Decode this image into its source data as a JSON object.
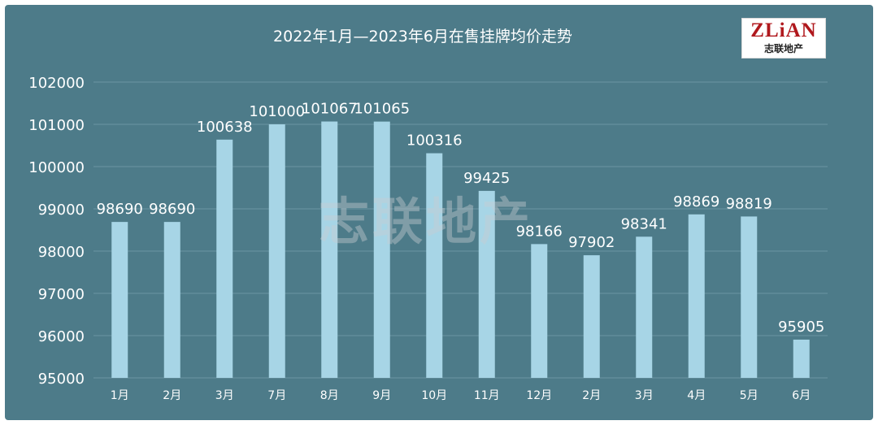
{
  "chart_data": {
    "type": "bar",
    "title": "2022年1月—2023年6月在售挂牌均价走势",
    "categories": [
      "1月",
      "2月",
      "3月",
      "7月",
      "8月",
      "9月",
      "10月",
      "11月",
      "12月",
      "2月",
      "3月",
      "4月",
      "5月",
      "6月"
    ],
    "values": [
      98690,
      98690,
      100638,
      101000,
      101067,
      101065,
      100316,
      99425,
      98166,
      97902,
      98341,
      98869,
      98819,
      95905
    ],
    "data_labels": [
      "98690",
      "98690",
      "100638",
      "101000",
      "101067",
      "101065",
      "100316",
      "99425",
      "98166",
      "97902",
      "98341",
      "98869",
      "98819",
      "95905"
    ],
    "ylim": [
      95000,
      102000
    ],
    "yticks": [
      95000,
      96000,
      97000,
      98000,
      99000,
      100000,
      101000,
      102000
    ],
    "xlabel": "",
    "ylabel": "",
    "grid": true,
    "legend": "none",
    "colors": {
      "background": "#4d7b89",
      "bar": "#a7d5e6",
      "text": "#ffffff",
      "grid": "#6a95a2"
    }
  },
  "logo": {
    "top": "ZLiAN",
    "bottom": "志联地产"
  },
  "watermark": "志联地产"
}
